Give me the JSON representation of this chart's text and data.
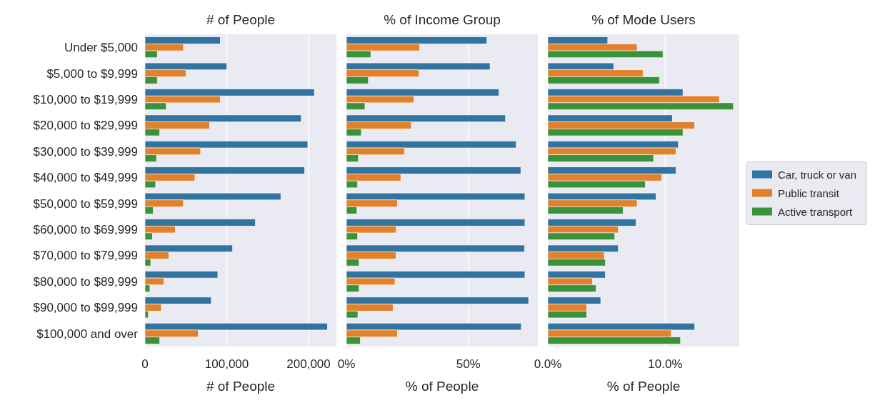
{
  "chart_data": [
    {
      "type": "bar",
      "orientation": "horizontal",
      "title": "# of People",
      "xlabel": "# of People",
      "grid": "x",
      "categories": [
        "Under $5,000",
        "$5,000 to $9,999",
        "$10,000 to $19,999",
        "$20,000 to $29,999",
        "$30,000 to $39,999",
        "$40,000 to $49,999",
        "$50,000 to $59,999",
        "$60,000 to $69,999",
        "$70,000 to $79,999",
        "$80,000 to $89,999",
        "$90,000 to $99,999",
        "$100,000 and over"
      ],
      "xlim": [
        0,
        234000
      ],
      "xticks": [
        0,
        {
          "value": 100000,
          "label": "100,000"
        },
        {
          "value": 200000,
          "label": "200,000"
        }
      ],
      "series": [
        {
          "color": "#3274a1",
          "values": [
            92000,
            100000,
            207000,
            191000,
            199000,
            195000,
            166000,
            135000,
            107000,
            89000,
            81000,
            223000
          ]
        },
        {
          "color": "#e1812c",
          "values": [
            47000,
            50000,
            92000,
            79000,
            68000,
            61000,
            47000,
            37000,
            29000,
            23000,
            20000,
            65000
          ]
        },
        {
          "color": "#3a923a",
          "values": [
            15000,
            15000,
            26000,
            18000,
            14000,
            13000,
            10000,
            9000,
            7000,
            6000,
            4000,
            18000
          ]
        }
      ]
    },
    {
      "type": "bar",
      "orientation": "horizontal",
      "title": "% of Income Group",
      "xlabel": "% of People",
      "grid": "x",
      "tick_labels": "x",
      "xlim": [
        0,
        78.5
      ],
      "xticks": [
        {
          "value": 0,
          "label": "0%"
        },
        {
          "value": 50,
          "label": "50%"
        }
      ],
      "series": [
        {
          "color": "#3274a1",
          "values": [
            57.6,
            58.9,
            62.6,
            65.2,
            69.6,
            71.5,
            73.2,
            73.2,
            73.0,
            73.2,
            74.7,
            71.7
          ]
        },
        {
          "color": "#e1812c",
          "values": [
            30.0,
            29.7,
            27.6,
            26.6,
            23.8,
            22.3,
            20.9,
            20.4,
            20.3,
            19.9,
            19.1,
            20.9
          ]
        },
        {
          "color": "#3a923a",
          "values": [
            10.0,
            9.0,
            7.6,
            6.1,
            4.9,
            4.6,
            4.3,
            4.6,
            5.2,
            5.2,
            4.7,
            5.7
          ]
        }
      ]
    },
    {
      "type": "bar",
      "orientation": "horizontal",
      "title": "% of Mode Users",
      "xlabel": "% of People",
      "grid": "x",
      "tick_labels": "x",
      "legend": "right",
      "xlim": [
        0,
        16.3
      ],
      "xticks": [
        {
          "value": 0,
          "label": "0.0%"
        },
        {
          "value": 10,
          "label": "10.0%"
        }
      ],
      "series": [
        {
          "name": "Car, truck or van",
          "color": "#3274a1",
          "values": [
            5.1,
            5.6,
            11.5,
            10.6,
            11.1,
            10.9,
            9.2,
            7.5,
            6.0,
            4.9,
            4.5,
            12.5
          ]
        },
        {
          "name": "Public transit",
          "color": "#e1812c",
          "values": [
            7.6,
            8.1,
            14.6,
            12.5,
            10.9,
            9.7,
            7.6,
            6.0,
            4.8,
            3.8,
            3.3,
            10.5
          ]
        },
        {
          "name": "Active transport",
          "color": "#3a923a",
          "values": [
            9.8,
            9.5,
            15.8,
            11.5,
            9.0,
            8.3,
            6.4,
            5.7,
            4.9,
            4.1,
            3.3,
            11.3
          ]
        }
      ]
    }
  ]
}
